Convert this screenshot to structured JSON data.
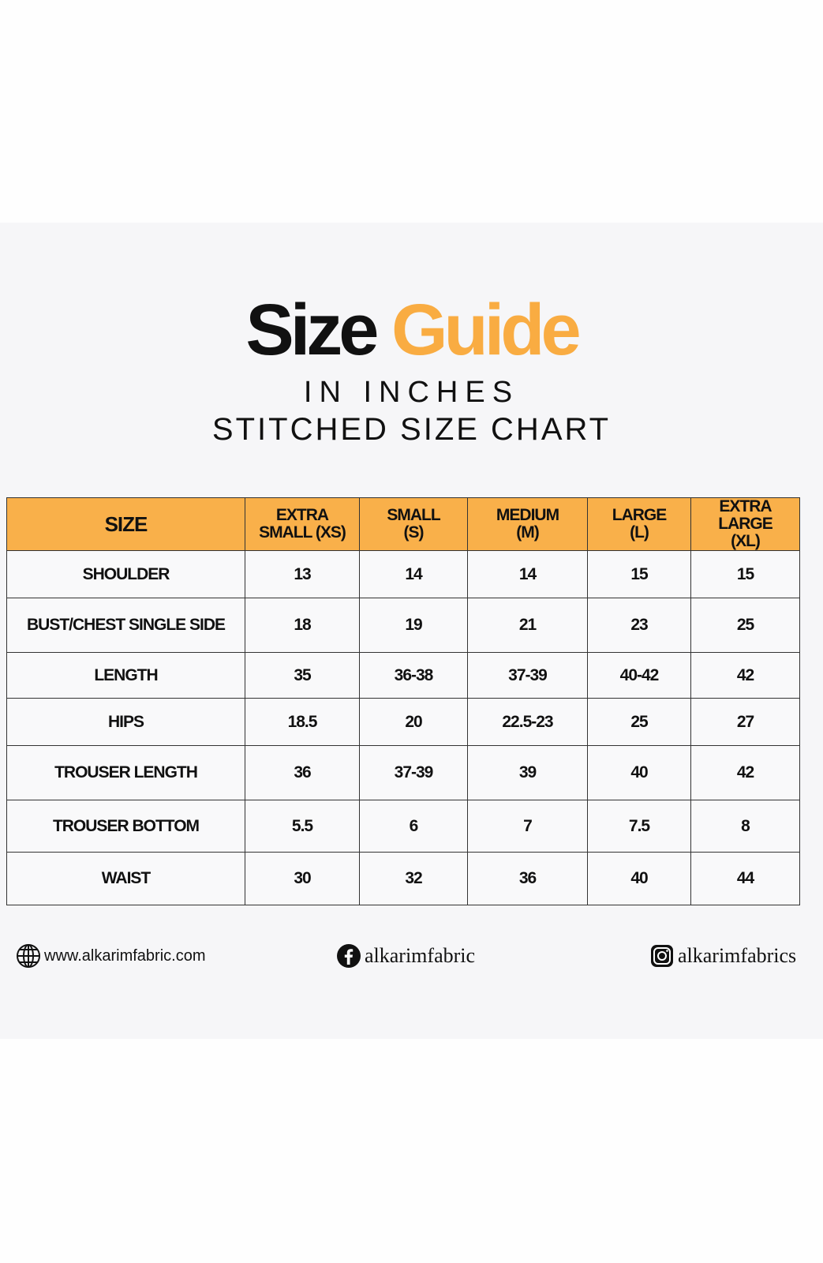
{
  "title": {
    "word1": "Size",
    "word2": "Guide"
  },
  "subtitle": "IN INCHES",
  "chart_name": "STITCHED SIZE CHART",
  "colors": {
    "accent": "#f9ac42",
    "header_bg": "#f9b04a"
  },
  "table": {
    "headers": [
      [
        "SIZE"
      ],
      [
        "EXTRA",
        "SMALL (XS)"
      ],
      [
        "SMALL",
        "(S)"
      ],
      [
        "MEDIUM",
        "(M)"
      ],
      [
        "LARGE",
        "(L)"
      ],
      [
        "EXTRA LARGE",
        "(XL)"
      ]
    ],
    "rows": [
      [
        "SHOULDER",
        "13",
        "14",
        "14",
        "15",
        "15"
      ],
      [
        "BUST/CHEST SINGLE SIDE",
        "18",
        "19",
        "21",
        "23",
        "25"
      ],
      [
        "LENGTH",
        "35",
        "36-38",
        "37-39",
        "40-42",
        "42"
      ],
      [
        "HIPS",
        "18.5",
        "20",
        "22.5-23",
        "25",
        "27"
      ],
      [
        "TROUSER LENGTH",
        "36",
        "37-39",
        "39",
        "40",
        "42"
      ],
      [
        "TROUSER BOTTOM",
        "5.5",
        "6",
        "7",
        "7.5",
        "8"
      ],
      [
        "WAIST",
        "30",
        "32",
        "36",
        "40",
        "44"
      ]
    ]
  },
  "footer": {
    "website": "www.alkarimfabric.com",
    "facebook": "alkarimfabric",
    "instagram": "alkarimfabrics",
    "icons": [
      "globe-icon",
      "facebook-icon",
      "instagram-icon"
    ]
  }
}
